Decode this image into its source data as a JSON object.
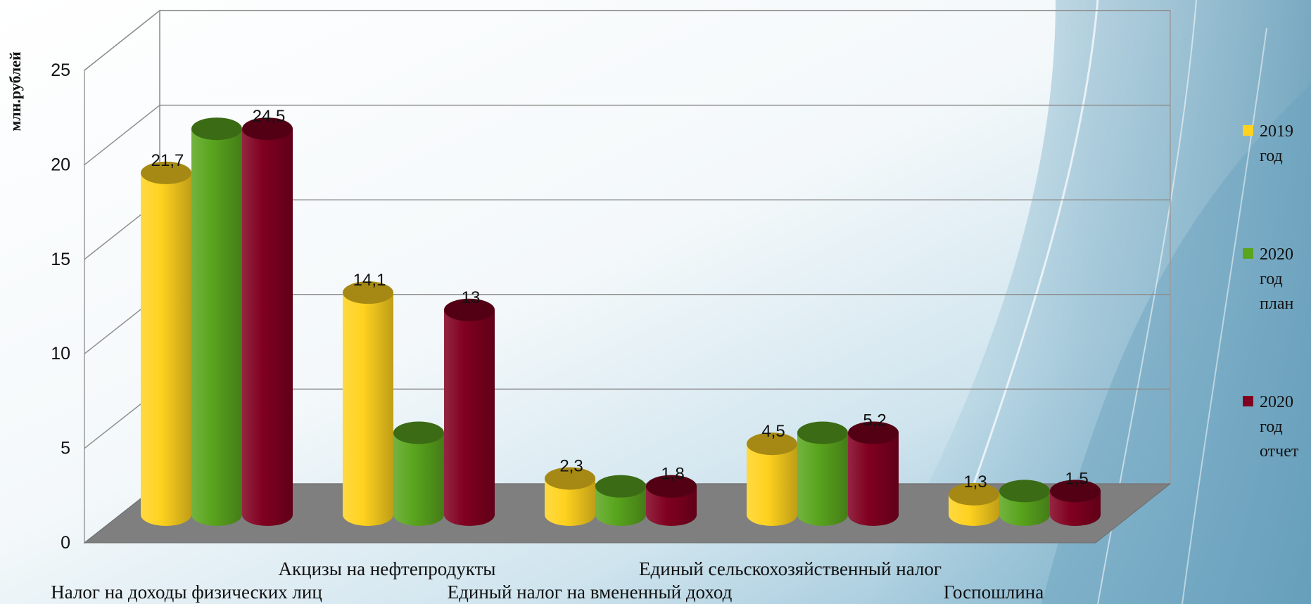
{
  "chart_data": {
    "type": "bar",
    "ylabel": "млн.рублей",
    "ylim": [
      0,
      25
    ],
    "yticks": [
      "0",
      "5",
      "10",
      "15",
      "20",
      "25"
    ],
    "categories": [
      "Налог на доходы физических лиц",
      "Акцизы на нефтепродукты",
      "Единый налог на вмененный доход",
      "Единый сельскохозяйственный налог",
      "Госпошлина"
    ],
    "series": [
      {
        "name": "2019 год",
        "color": "#FFD21F",
        "values": [
          21.7,
          14.1,
          2.3,
          4.5,
          1.3
        ],
        "labels": [
          "21,7",
          "14,1",
          "2,3",
          "4,5",
          "1,3"
        ]
      },
      {
        "name": "2020 год план",
        "color": "#5AA51E",
        "values": [
          24.5,
          5.2,
          1.8,
          5.2,
          1.5
        ],
        "labels": [
          "",
          "",
          "",
          "",
          ""
        ]
      },
      {
        "name": "2020 год отчет",
        "color": "#800020",
        "values": [
          24.5,
          13.0,
          1.8,
          5.2,
          1.5
        ],
        "labels": [
          "24,5",
          "13",
          "1,8",
          "5,2",
          "1,5"
        ]
      }
    ],
    "grid": true,
    "legend": "right"
  }
}
